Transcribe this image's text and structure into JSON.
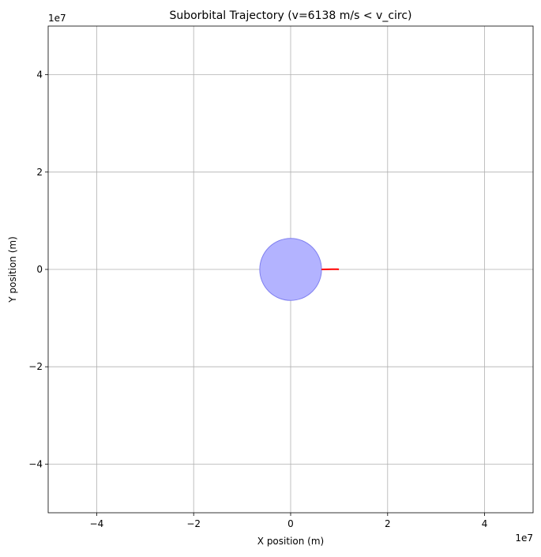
{
  "chart_data": {
    "type": "scatter",
    "title": "Suborbital Trajectory (v=6138 m/s < v_circ)",
    "xlabel": "X position (m)",
    "ylabel": "Y position (m)",
    "xlim": [
      -50000000,
      50000000
    ],
    "ylim": [
      -50000000,
      50000000
    ],
    "x_ticks": [
      -40000000,
      -20000000,
      0,
      20000000,
      40000000
    ],
    "y_ticks": [
      -40000000,
      -20000000,
      0,
      20000000,
      40000000
    ],
    "x_tick_labels": [
      "−4",
      "−2",
      "0",
      "2",
      "4"
    ],
    "y_tick_labels": [
      "−4",
      "−2",
      "0",
      "2",
      "4"
    ],
    "x_offset_label": "1e7",
    "y_offset_label": "1e7",
    "grid": true,
    "planet": {
      "center": [
        0,
        0
      ],
      "radius": 6371000,
      "fill_color": "#b3b3ff",
      "edge_color": "#8080f0"
    },
    "series": [
      {
        "color": "#ff0000",
        "x": [
          6371000,
          7500000,
          8600000,
          9600000,
          9950000
        ],
        "y": [
          0,
          30000,
          45000,
          40000,
          20000
        ]
      }
    ]
  },
  "colors": {
    "grid": "#b0b0b0",
    "axes": "#000000",
    "background": "#ffffff"
  }
}
